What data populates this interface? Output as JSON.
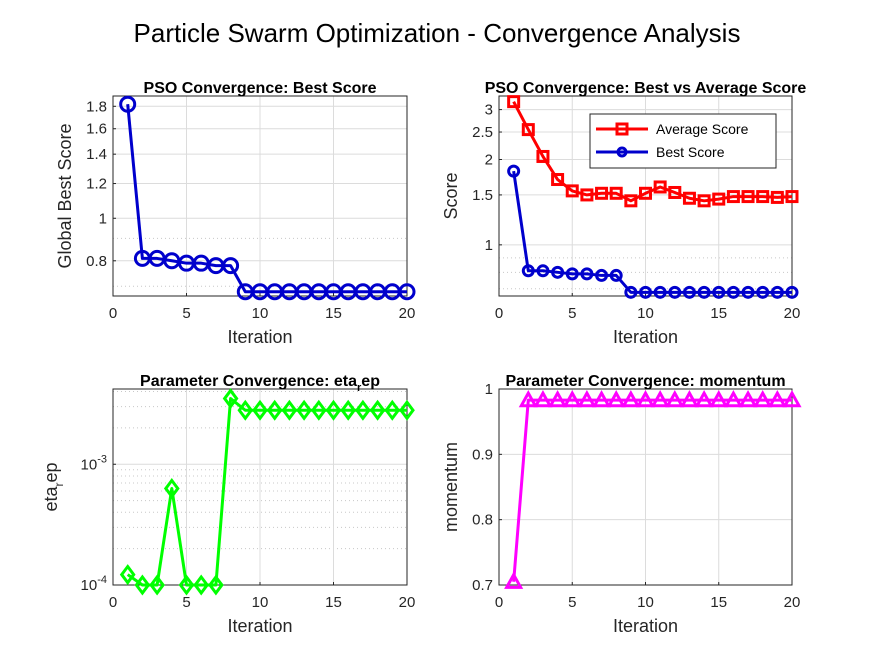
{
  "figure": {
    "title": "Particle Swarm Optimization - Convergence Analysis"
  },
  "chart_data": [
    {
      "type": "line",
      "title": "PSO Convergence: Best Score",
      "xlabel": "Iteration",
      "ylabel": "Global Best Score",
      "yscale": "log",
      "xlim": [
        0,
        20
      ],
      "ylim": [
        0.665,
        1.9
      ],
      "xticks": [
        0,
        5,
        10,
        15,
        20
      ],
      "yticks": [
        0.8,
        1,
        1.2,
        1.4,
        1.6,
        1.8
      ],
      "ytick_labels": [
        "0.8",
        "1",
        "1.2",
        "1.4",
        "1.6",
        "1.8"
      ],
      "grid": true,
      "series": [
        {
          "color": "#0000cc",
          "marker": "circle",
          "x": [
            1,
            2,
            3,
            4,
            5,
            6,
            7,
            8,
            9,
            10,
            11,
            12,
            13,
            14,
            15,
            16,
            17,
            18,
            19,
            20
          ],
          "values": [
            1.82,
            0.81,
            0.81,
            0.8,
            0.79,
            0.79,
            0.78,
            0.78,
            0.68,
            0.68,
            0.68,
            0.68,
            0.68,
            0.68,
            0.68,
            0.68,
            0.68,
            0.68,
            0.68,
            0.68
          ]
        }
      ]
    },
    {
      "type": "line",
      "title": "PSO Convergence: Best vs Average Score",
      "xlabel": "Iteration",
      "ylabel": "Score",
      "yscale": "log",
      "xlim": [
        0,
        20
      ],
      "ylim": [
        0.66,
        3.35
      ],
      "xticks": [
        0,
        5,
        10,
        15,
        20
      ],
      "yticks": [
        1,
        1.5,
        2,
        2.5,
        3
      ],
      "ytick_labels": [
        "1",
        "1.5",
        "2",
        "2.5",
        "3"
      ],
      "grid": true,
      "legend": "top-right",
      "series": [
        {
          "name": "Average Score",
          "color": "#ff0000",
          "marker": "square",
          "x": [
            1,
            2,
            3,
            4,
            5,
            6,
            7,
            8,
            9,
            10,
            11,
            12,
            13,
            14,
            15,
            16,
            17,
            18,
            19,
            20
          ],
          "values": [
            3.2,
            2.55,
            2.05,
            1.7,
            1.55,
            1.5,
            1.52,
            1.52,
            1.43,
            1.52,
            1.6,
            1.53,
            1.46,
            1.43,
            1.45,
            1.48,
            1.48,
            1.48,
            1.47,
            1.48
          ]
        },
        {
          "name": "Best Score",
          "color": "#0000cc",
          "marker": "circle",
          "x": [
            1,
            2,
            3,
            4,
            5,
            6,
            7,
            8,
            9,
            10,
            11,
            12,
            13,
            14,
            15,
            16,
            17,
            18,
            19,
            20
          ],
          "values": [
            1.82,
            0.81,
            0.81,
            0.8,
            0.79,
            0.79,
            0.78,
            0.78,
            0.68,
            0.68,
            0.68,
            0.68,
            0.68,
            0.68,
            0.68,
            0.68,
            0.68,
            0.68,
            0.68,
            0.68
          ]
        }
      ]
    },
    {
      "type": "line",
      "title": "Parameter Convergence: eta",
      "title_sub": "r",
      "title_after": "ep",
      "xlabel": "Iteration",
      "ylabel": "eta",
      "ylabel_sub": "r",
      "ylabel_after": "ep",
      "yscale": "log",
      "xlim": [
        0,
        20
      ],
      "ylim": [
        0.0001,
        0.0042
      ],
      "xticks": [
        0,
        5,
        10,
        15,
        20
      ],
      "yticks": [
        0.0001,
        0.001
      ],
      "ytick_labels": [
        {
          "base": "10",
          "exp": "-4"
        },
        {
          "base": "10",
          "exp": "-3"
        }
      ],
      "grid": true,
      "series": [
        {
          "color": "#00ff00",
          "marker": "diamond",
          "x": [
            1,
            2,
            3,
            4,
            5,
            6,
            7,
            8,
            9,
            10,
            11,
            12,
            13,
            14,
            15,
            16,
            17,
            18,
            19,
            20
          ],
          "values": [
            0.000122,
            0.0001,
            0.0001,
            0.00063,
            0.0001,
            0.0001,
            0.0001,
            0.0035,
            0.0028,
            0.0028,
            0.0028,
            0.0028,
            0.0028,
            0.0028,
            0.0028,
            0.0028,
            0.0028,
            0.0028,
            0.0028,
            0.0028
          ]
        }
      ]
    },
    {
      "type": "line",
      "title": "Parameter Convergence: momentum",
      "xlabel": "Iteration",
      "ylabel": "momentum",
      "yscale": "linear",
      "xlim": [
        0,
        20
      ],
      "ylim": [
        0.7,
        1.0
      ],
      "xticks": [
        0,
        5,
        10,
        15,
        20
      ],
      "yticks": [
        0.7,
        0.8,
        0.9,
        1.0
      ],
      "ytick_labels": [
        "0.7",
        "0.8",
        "0.9",
        "1"
      ],
      "grid": true,
      "series": [
        {
          "color": "#ff00ff",
          "marker": "triangle",
          "x": [
            1,
            2,
            3,
            4,
            5,
            6,
            7,
            8,
            9,
            10,
            11,
            12,
            13,
            14,
            15,
            16,
            17,
            18,
            19,
            20
          ],
          "values": [
            0.705,
            0.983,
            0.983,
            0.983,
            0.983,
            0.983,
            0.983,
            0.983,
            0.983,
            0.983,
            0.983,
            0.983,
            0.983,
            0.983,
            0.983,
            0.983,
            0.983,
            0.983,
            0.983,
            0.983
          ]
        }
      ]
    }
  ]
}
